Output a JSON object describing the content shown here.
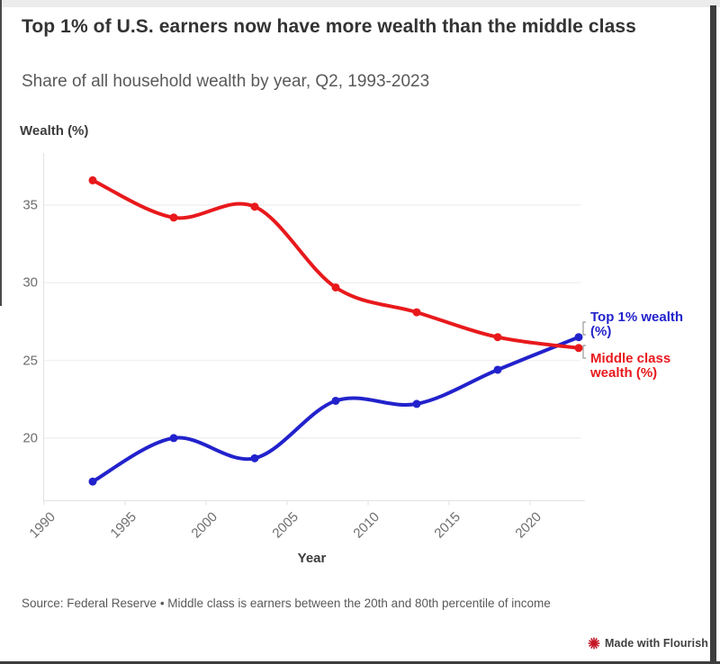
{
  "header": {
    "title": "Top 1% of U.S. earners now have more wealth than the middle class",
    "subtitle": "Share of all household wealth by year, Q2, 1993-2023"
  },
  "chart_data": {
    "type": "line",
    "title": "Top 1% of U.S. earners now have more wealth than the middle class",
    "subtitle": "Share of all household wealth by year, Q2, 1993-2023",
    "xlabel": "Year",
    "ylabel": "Wealth (%)",
    "x": [
      1993,
      1998,
      2003,
      2008,
      2013,
      2018,
      2023
    ],
    "series": [
      {
        "name": "Top 1% wealth (%)",
        "color": "#2222cc",
        "values": [
          17.2,
          20.0,
          18.7,
          22.4,
          22.2,
          24.4,
          26.5
        ]
      },
      {
        "name": "Middle class wealth (%)",
        "color": "#e8191c",
        "values": [
          36.6,
          34.2,
          34.9,
          29.7,
          28.1,
          26.5,
          25.8
        ]
      }
    ],
    "xticks": [
      1990,
      1995,
      2000,
      2005,
      2010,
      2015,
      2020
    ],
    "yticks": [
      20,
      25,
      30,
      35
    ],
    "xlim": [
      1990,
      2023.4
    ],
    "ylim": [
      16.0,
      38.4
    ],
    "grid": true,
    "legend_position": "right",
    "legend": {
      "entries": [
        {
          "lines": [
            "Top 1% wealth",
            "(%)"
          ],
          "color": "#2222cc"
        },
        {
          "lines": [
            "Middle class",
            "wealth (%)"
          ],
          "color": "#e8191c"
        }
      ]
    },
    "colors": {
      "grid": "#f1f1f1",
      "axis": "#e2e2e2",
      "tick_label": "#6e6e6e",
      "bracket": "#9a9a9a"
    }
  },
  "footer": {
    "source": "Source: Federal Reserve • Middle class is earners between the 20th and 80th percentile of income",
    "flourish_label": "Made with Flourish",
    "flourish_color": "#c41425"
  }
}
